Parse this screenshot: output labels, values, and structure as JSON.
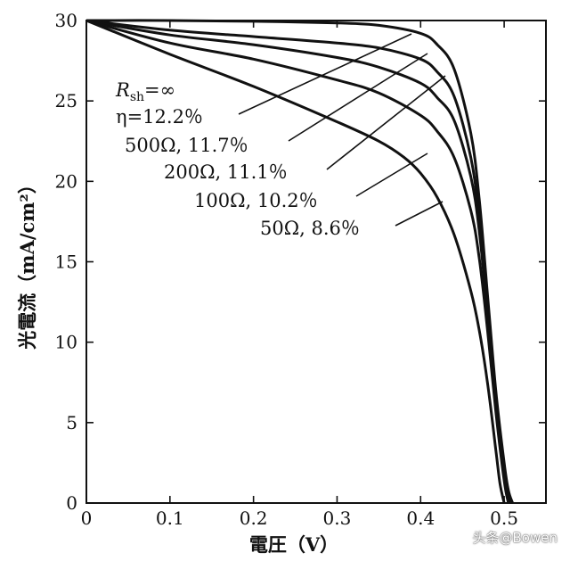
{
  "chart_data": {
    "type": "line",
    "xlabel": "電圧（V）",
    "ylabel": "光電流（mA/cm²）",
    "xlim": [
      0,
      0.55
    ],
    "ylim": [
      0,
      30
    ],
    "xticks": [
      "0",
      "0.1",
      "0.2",
      "0.3",
      "0.4",
      "0.5"
    ],
    "yticks": [
      "0",
      "5",
      "10",
      "15",
      "20",
      "25",
      "30"
    ],
    "grid": false,
    "annotations": [
      {
        "line1_main": "R",
        "line1_sub": "sh",
        "line1_rest": "=∞",
        "line2": "η=12.2％"
      },
      {
        "text": "500Ω, 11.7％"
      },
      {
        "text": "200Ω, 11.1％"
      },
      {
        "text": "100Ω, 10.2％"
      },
      {
        "text": "50Ω, 8.6％"
      }
    ],
    "series": [
      {
        "x": [
          0,
          0.1,
          0.2,
          0.3,
          0.35,
          0.4,
          0.42,
          0.44,
          0.46,
          0.47,
          0.48,
          0.49,
          0.5,
          0.505,
          0.51
        ],
        "y": [
          30,
          30,
          29.95,
          29.85,
          29.7,
          29.2,
          28.5,
          27,
          23,
          19,
          13,
          7,
          2.5,
          0.8,
          0
        ]
      },
      {
        "x": [
          0,
          0.1,
          0.2,
          0.3,
          0.35,
          0.4,
          0.42,
          0.44,
          0.46,
          0.47,
          0.48,
          0.49,
          0.5,
          0.505,
          0.51
        ],
        "y": [
          30,
          29.4,
          29.0,
          28.6,
          28.3,
          27.6,
          26.8,
          25.3,
          21.5,
          17.8,
          12.3,
          6.7,
          2.3,
          0.7,
          0
        ]
      },
      {
        "x": [
          0,
          0.1,
          0.2,
          0.3,
          0.35,
          0.4,
          0.42,
          0.44,
          0.46,
          0.47,
          0.48,
          0.49,
          0.5,
          0.505,
          0.508
        ],
        "y": [
          30,
          29.1,
          28.5,
          27.7,
          27.1,
          26.1,
          25.2,
          23.8,
          20.3,
          17.0,
          11.8,
          6.3,
          2.0,
          0.6,
          0
        ]
      },
      {
        "x": [
          0,
          0.1,
          0.2,
          0.3,
          0.35,
          0.4,
          0.42,
          0.44,
          0.46,
          0.47,
          0.48,
          0.49,
          0.5,
          0.505
        ],
        "y": [
          30,
          28.6,
          27.6,
          26.3,
          25.5,
          24.1,
          23.1,
          21.5,
          18.2,
          15.3,
          10.8,
          5.7,
          1.4,
          0
        ]
      },
      {
        "x": [
          0,
          0.1,
          0.2,
          0.3,
          0.35,
          0.38,
          0.4,
          0.42,
          0.44,
          0.46,
          0.47,
          0.48,
          0.49,
          0.495,
          0.5
        ],
        "y": [
          30,
          27.9,
          25.9,
          23.7,
          22.5,
          21.5,
          20.5,
          19.0,
          16.7,
          13.2,
          10.8,
          7.5,
          3.3,
          1.2,
          0
        ]
      }
    ]
  },
  "watermark": "头条@Bowen"
}
